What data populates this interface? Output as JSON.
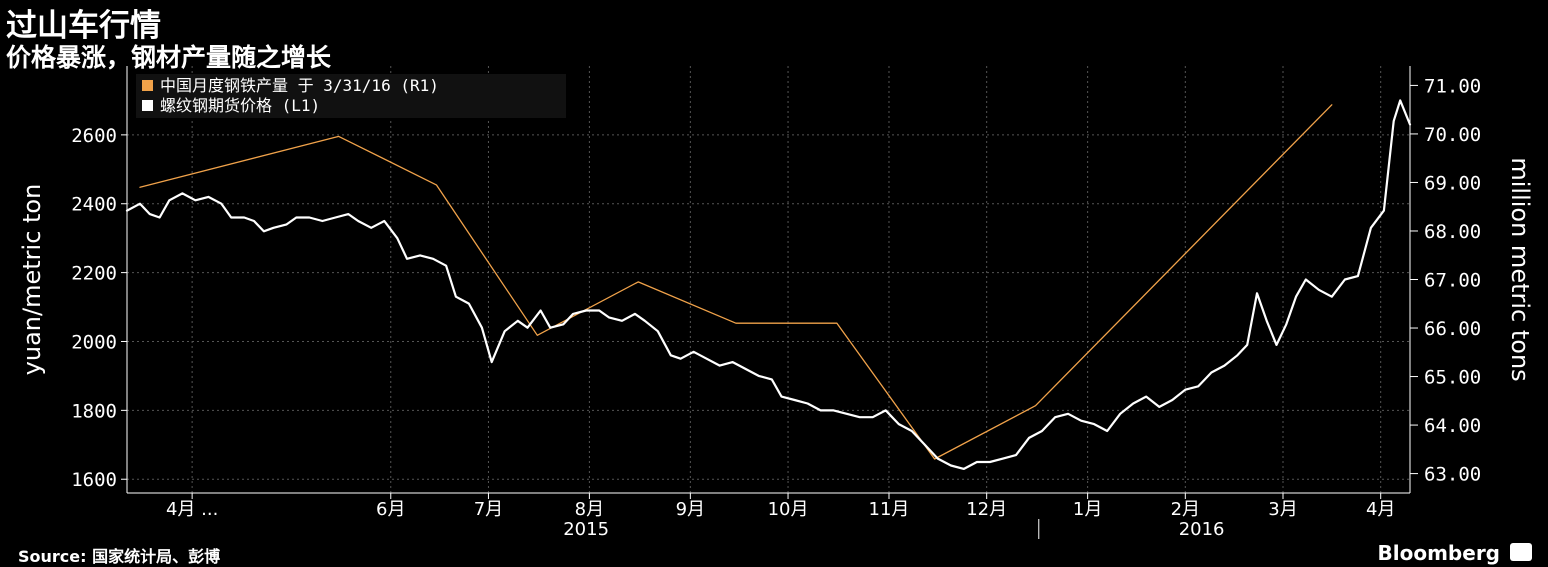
{
  "header": {
    "title": "过山车行情",
    "subtitle": "价格暴涨，钢材产量随之增长"
  },
  "footer": {
    "source": "Source: 国家统计局、彭博",
    "brand": "Bloomberg"
  },
  "colors": {
    "background": "#000000",
    "output_line": "#f0a24a",
    "price_line": "#ffffff",
    "grid": "#555555"
  },
  "chart_data": {
    "type": "line",
    "title": "过山车行情",
    "subtitle": "价格暴涨，钢材产量随之增长",
    "ylabel_left": "yuan/metric ton",
    "ylabel_right": "million metric tons",
    "ylim_left": [
      1560,
      2800
    ],
    "ylim_right": [
      62.6,
      71.4
    ],
    "yticks_left": [
      "1600",
      "1800",
      "2000",
      "2200",
      "2400",
      "2600"
    ],
    "yticks_right": [
      "63.00",
      "64.00",
      "65.00",
      "66.00",
      "67.00",
      "68.00",
      "69.00",
      "70.00",
      "71.00"
    ],
    "x_range": [
      "2015-03-27",
      "2016-04-24"
    ],
    "months": [
      {
        "label": "4月 ...",
        "date": "2015-04-16"
      },
      {
        "label": "6月",
        "date": "2015-06-16"
      },
      {
        "label": "7月",
        "date": "2015-07-16"
      },
      {
        "label": "8月",
        "date": "2015-08-16"
      },
      {
        "label": "9月",
        "date": "2015-09-16"
      },
      {
        "label": "10月",
        "date": "2015-10-16"
      },
      {
        "label": "11月",
        "date": "2015-11-16"
      },
      {
        "label": "12月",
        "date": "2015-12-16"
      },
      {
        "label": "1月",
        "date": "2016-01-16"
      },
      {
        "label": "2月",
        "date": "2016-02-15"
      },
      {
        "label": "3月",
        "date": "2016-03-16"
      },
      {
        "label": "4月",
        "date": "2016-04-15"
      }
    ],
    "years": [
      {
        "label": "2015",
        "date": "2015-08-15"
      },
      {
        "label": "2016",
        "date": "2016-02-20"
      }
    ],
    "year_divider": "2016-01-01",
    "legend": [
      {
        "label": "中国月度钢铁产量 于 3/31/16 (R1)",
        "color": "#f0a24a"
      },
      {
        "label": "螺纹钢期货价格 (L1)",
        "color": "#ffffff"
      }
    ],
    "series": [
      {
        "name": "中国月度钢铁产量 于 3/31/16 (R1)",
        "axis": "right",
        "color": "#f0a24a",
        "points": [
          [
            "2015-03-31",
            68.9
          ],
          [
            "2015-05-31",
            69.95
          ],
          [
            "2015-06-30",
            68.95
          ],
          [
            "2015-07-31",
            65.85
          ],
          [
            "2015-08-31",
            66.95
          ],
          [
            "2015-09-30",
            66.1
          ],
          [
            "2015-10-31",
            66.1
          ],
          [
            "2015-11-30",
            63.3
          ],
          [
            "2015-12-31",
            64.4
          ],
          [
            "2016-03-31",
            70.6
          ]
        ]
      },
      {
        "name": "螺纹钢期货价格 (L1)",
        "axis": "left",
        "color": "#ffffff",
        "points": [
          [
            "2015-03-27",
            2380
          ],
          [
            "2015-03-31",
            2400
          ],
          [
            "2015-04-03",
            2370
          ],
          [
            "2015-04-06",
            2360
          ],
          [
            "2015-04-09",
            2410
          ],
          [
            "2015-04-13",
            2430
          ],
          [
            "2015-04-17",
            2410
          ],
          [
            "2015-04-21",
            2420
          ],
          [
            "2015-04-25",
            2400
          ],
          [
            "2015-04-28",
            2360
          ],
          [
            "2015-05-02",
            2360
          ],
          [
            "2015-05-05",
            2350
          ],
          [
            "2015-05-08",
            2320
          ],
          [
            "2015-05-11",
            2330
          ],
          [
            "2015-05-15",
            2340
          ],
          [
            "2015-05-18",
            2360
          ],
          [
            "2015-05-22",
            2360
          ],
          [
            "2015-05-26",
            2350
          ],
          [
            "2015-05-30",
            2360
          ],
          [
            "2015-06-03",
            2370
          ],
          [
            "2015-06-06",
            2350
          ],
          [
            "2015-06-10",
            2330
          ],
          [
            "2015-06-14",
            2350
          ],
          [
            "2015-06-18",
            2300
          ],
          [
            "2015-06-21",
            2240
          ],
          [
            "2015-06-25",
            2250
          ],
          [
            "2015-06-29",
            2240
          ],
          [
            "2015-07-03",
            2220
          ],
          [
            "2015-07-06",
            2130
          ],
          [
            "2015-07-10",
            2110
          ],
          [
            "2015-07-14",
            2040
          ],
          [
            "2015-07-17",
            1940
          ],
          [
            "2015-07-21",
            2030
          ],
          [
            "2015-07-25",
            2060
          ],
          [
            "2015-07-28",
            2040
          ],
          [
            "2015-08-01",
            2090
          ],
          [
            "2015-08-04",
            2040
          ],
          [
            "2015-08-08",
            2050
          ],
          [
            "2015-08-11",
            2080
          ],
          [
            "2015-08-15",
            2090
          ],
          [
            "2015-08-19",
            2090
          ],
          [
            "2015-08-22",
            2070
          ],
          [
            "2015-08-26",
            2060
          ],
          [
            "2015-08-30",
            2080
          ],
          [
            "2015-09-02",
            2060
          ],
          [
            "2015-09-06",
            2030
          ],
          [
            "2015-09-10",
            1960
          ],
          [
            "2015-09-13",
            1950
          ],
          [
            "2015-09-17",
            1970
          ],
          [
            "2015-09-21",
            1950
          ],
          [
            "2015-09-25",
            1930
          ],
          [
            "2015-09-29",
            1940
          ],
          [
            "2015-10-03",
            1920
          ],
          [
            "2015-10-07",
            1900
          ],
          [
            "2015-10-11",
            1890
          ],
          [
            "2015-10-14",
            1840
          ],
          [
            "2015-10-18",
            1830
          ],
          [
            "2015-10-22",
            1820
          ],
          [
            "2015-10-26",
            1800
          ],
          [
            "2015-10-30",
            1800
          ],
          [
            "2015-11-03",
            1790
          ],
          [
            "2015-11-07",
            1780
          ],
          [
            "2015-11-11",
            1780
          ],
          [
            "2015-11-15",
            1800
          ],
          [
            "2015-11-19",
            1760
          ],
          [
            "2015-11-23",
            1740
          ],
          [
            "2015-11-27",
            1700
          ],
          [
            "2015-12-01",
            1660
          ],
          [
            "2015-12-05",
            1640
          ],
          [
            "2015-12-09",
            1630
          ],
          [
            "2015-12-13",
            1650
          ],
          [
            "2015-12-17",
            1650
          ],
          [
            "2015-12-21",
            1660
          ],
          [
            "2015-12-25",
            1670
          ],
          [
            "2015-12-29",
            1720
          ],
          [
            "2016-01-02",
            1740
          ],
          [
            "2016-01-06",
            1780
          ],
          [
            "2016-01-10",
            1790
          ],
          [
            "2016-01-14",
            1770
          ],
          [
            "2016-01-18",
            1760
          ],
          [
            "2016-01-22",
            1740
          ],
          [
            "2016-01-26",
            1790
          ],
          [
            "2016-01-30",
            1820
          ],
          [
            "2016-02-03",
            1840
          ],
          [
            "2016-02-07",
            1810
          ],
          [
            "2016-02-11",
            1830
          ],
          [
            "2016-02-15",
            1860
          ],
          [
            "2016-02-19",
            1870
          ],
          [
            "2016-02-23",
            1910
          ],
          [
            "2016-02-27",
            1930
          ],
          [
            "2016-03-02",
            1960
          ],
          [
            "2016-03-05",
            1990
          ],
          [
            "2016-03-08",
            2140
          ],
          [
            "2016-03-11",
            2060
          ],
          [
            "2016-03-14",
            1990
          ],
          [
            "2016-03-17",
            2050
          ],
          [
            "2016-03-20",
            2130
          ],
          [
            "2016-03-23",
            2180
          ],
          [
            "2016-03-27",
            2150
          ],
          [
            "2016-03-31",
            2130
          ],
          [
            "2016-04-04",
            2180
          ],
          [
            "2016-04-08",
            2190
          ],
          [
            "2016-04-12",
            2330
          ],
          [
            "2016-04-16",
            2380
          ],
          [
            "2016-04-19",
            2640
          ],
          [
            "2016-04-21",
            2700
          ],
          [
            "2016-04-24",
            2630
          ]
        ]
      }
    ],
    "grid": true,
    "legend_position": "top-left"
  }
}
